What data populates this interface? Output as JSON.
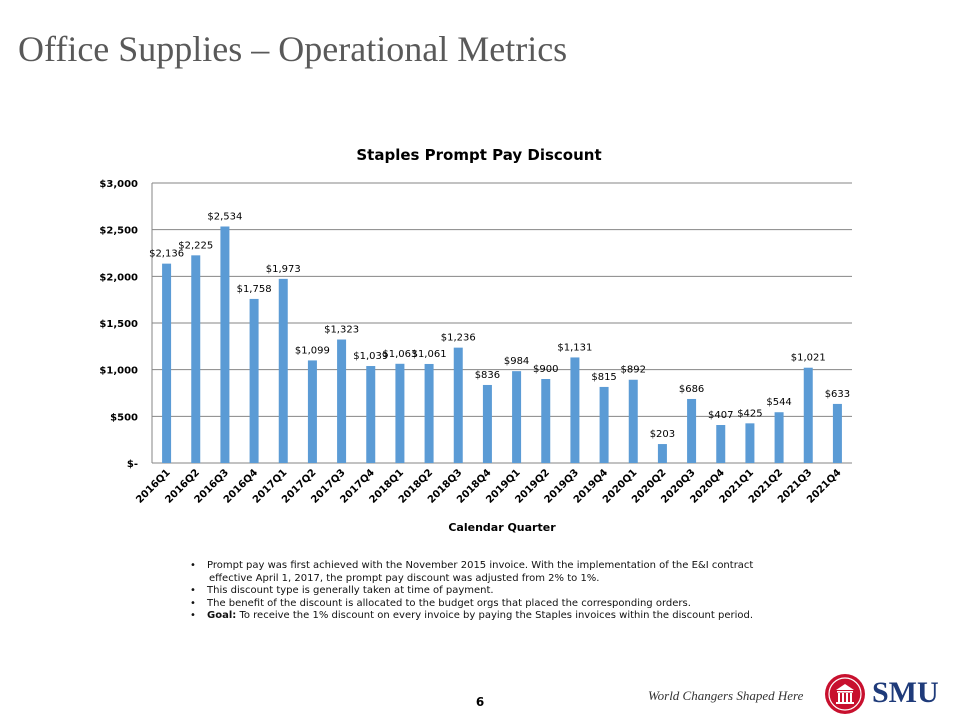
{
  "slide": {
    "title": "Office Supplies – Operational Metrics",
    "page_number": "6",
    "tagline": "World Changers Shaped Here",
    "logo_text": "SMU"
  },
  "bullets": [
    {
      "text": "Prompt pay was first achieved with the November 2015 invoice.  With the implementation of the E&I contract",
      "cont": "effective April 1, 2017, the prompt pay discount was adjusted from 2% to 1%."
    },
    {
      "text": "This discount type is generally taken at time of payment."
    },
    {
      "text": "The benefit of the discount is allocated to the budget orgs that placed the corresponding orders."
    },
    {
      "label": "Goal:",
      "text": "  To receive the 1% discount on every invoice by paying the Staples invoices within the discount period."
    }
  ],
  "chart_data": {
    "type": "bar",
    "title": "Staples Prompt Pay Discount",
    "xlabel": "Calendar Quarter",
    "ylabel": "",
    "ylim": [
      0,
      3000
    ],
    "yticks": [
      0,
      500,
      1000,
      1500,
      2000,
      2500,
      3000
    ],
    "ytick_labels": [
      "$-",
      "$500",
      "$1,000",
      "$1,500",
      "$2,000",
      "$2,500",
      "$3,000"
    ],
    "grid": true,
    "bar_color": "#5b9bd5",
    "categories": [
      "2016Q1",
      "2016Q2",
      "2016Q3",
      "2016Q4",
      "2017Q1",
      "2017Q2",
      "2017Q3",
      "2017Q4",
      "2018Q1",
      "2018Q2",
      "2018Q3",
      "2018Q4",
      "2019Q1",
      "2019Q2",
      "2019Q3",
      "2019Q4",
      "2020Q1",
      "2020Q2",
      "2020Q3",
      "2020Q4",
      "2021Q1",
      "2021Q2",
      "2021Q3",
      "2021Q4"
    ],
    "values": [
      2136,
      2225,
      2534,
      1758,
      1973,
      1099,
      1323,
      1039,
      1063,
      1061,
      1236,
      836,
      984,
      900,
      1131,
      815,
      892,
      203,
      686,
      407,
      425,
      544,
      1021,
      633
    ],
    "data_labels": [
      "$2,136",
      "$2,225",
      "$2,534",
      "$1,758",
      "$1,973",
      "$1,099",
      "$1,323",
      "$1,039",
      "$1,063",
      "$1,061",
      "$1,236",
      "$836",
      "$984",
      "$900",
      "$1,131",
      "$815",
      "$892",
      "$203",
      "$686",
      "$407",
      "$425",
      "$544",
      "$1,021",
      "$633"
    ]
  }
}
